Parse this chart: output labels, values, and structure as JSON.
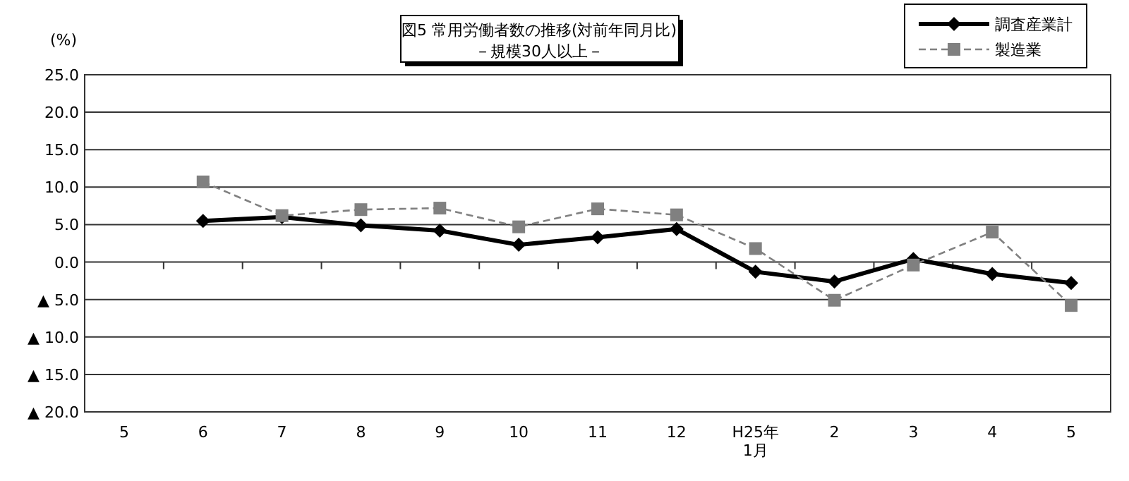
{
  "chart_data": {
    "type": "line",
    "title": "図5  常用労働者数の推移(対前年同月比)",
    "subtitle": "－規模30人以上－",
    "ylabel": "(%)",
    "categories": [
      "5",
      "6",
      "7",
      "8",
      "9",
      "10",
      "11",
      "12",
      "H25年\n1月",
      "2",
      "3",
      "4",
      "5"
    ],
    "series": [
      {
        "name": "調査産業計",
        "color": "#000000",
        "marker": "diamond",
        "line_style": "solid",
        "values": [
          null,
          5.5,
          6.0,
          4.9,
          4.2,
          2.3,
          3.3,
          4.4,
          -1.3,
          -2.6,
          0.4,
          -1.6,
          -2.8
        ]
      },
      {
        "name": "製造業",
        "color": "#808080",
        "marker": "square",
        "line_style": "dashed",
        "values": [
          null,
          10.7,
          6.2,
          7.0,
          7.2,
          4.7,
          7.1,
          6.3,
          1.8,
          -5.1,
          -0.4,
          4.0,
          -5.8
        ]
      }
    ],
    "ylim": [
      -20,
      25
    ],
    "yticks": [
      {
        "value": -20,
        "label": "▲ 20.0"
      },
      {
        "value": -15,
        "label": "▲ 15.0"
      },
      {
        "value": -10,
        "label": "▲ 10.0"
      },
      {
        "value": -5,
        "label": "▲ 5.0"
      },
      {
        "value": 0,
        "label": "0.0"
      },
      {
        "value": 5,
        "label": "5.0"
      },
      {
        "value": 10,
        "label": "10.0"
      },
      {
        "value": 15,
        "label": "15.0"
      },
      {
        "value": 20,
        "label": "20.0"
      },
      {
        "value": 25,
        "label": "25.0"
      }
    ],
    "grid": "y",
    "legend": "top right"
  }
}
